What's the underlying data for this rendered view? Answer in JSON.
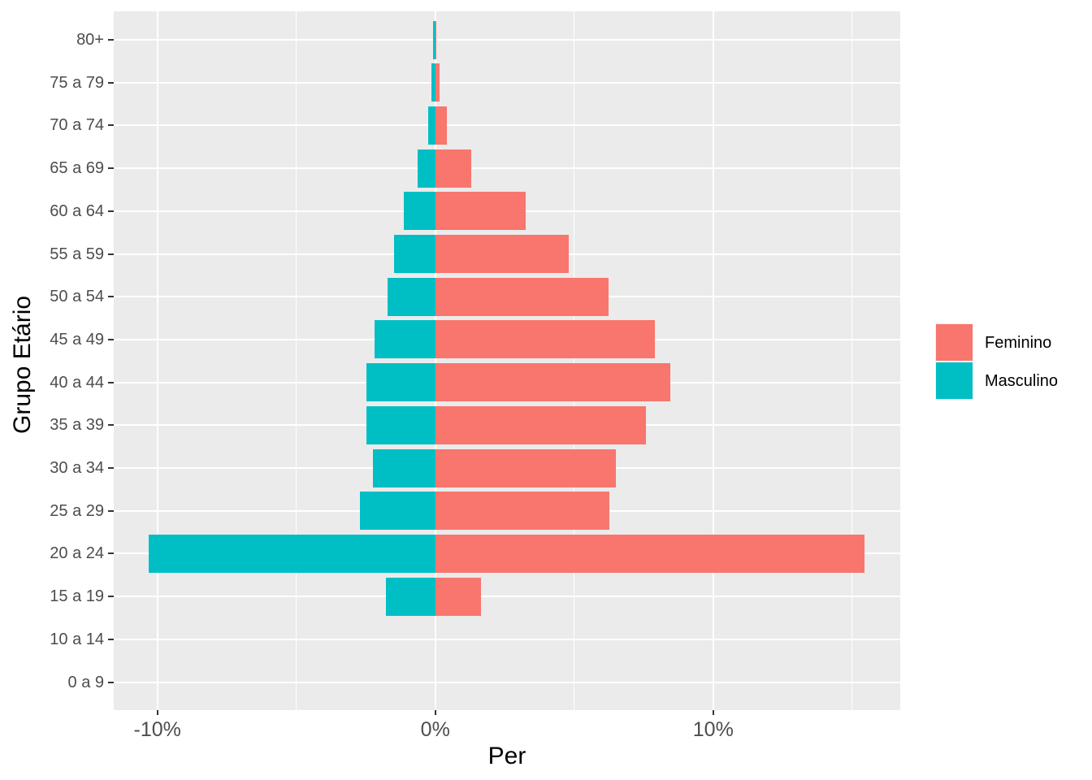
{
  "chart_data": {
    "type": "bar",
    "subtype": "population-pyramid",
    "orientation": "horizontal",
    "title": "",
    "xlabel": "Per",
    "ylabel": "Grupo Etário",
    "categories_top_to_bottom": [
      "80+",
      "75 a 79",
      "70 a 74",
      "65 a 69",
      "60 a 64",
      "55 a 59",
      "50 a 54",
      "45 a 49",
      "40 a 44",
      "35 a 39",
      "30 a 34",
      "25 a 29",
      "20 a 24",
      "15 a 19",
      "10 a 14",
      "0 a 9"
    ],
    "series": [
      {
        "name": "Masculino",
        "side": "left-negative",
        "color": "#00BFC4",
        "values_pct": [
          0.08,
          0.13,
          0.26,
          0.65,
          1.14,
          1.49,
          1.73,
          2.2,
          2.49,
          2.47,
          2.24,
          2.7,
          10.31,
          1.79,
          0,
          0
        ]
      },
      {
        "name": "Feminino",
        "side": "right-positive",
        "color": "#F8766D",
        "values_pct": [
          0.05,
          0.14,
          0.43,
          1.28,
          3.24,
          4.81,
          6.24,
          7.91,
          8.47,
          7.59,
          6.51,
          6.25,
          15.44,
          1.64,
          0,
          0
        ]
      }
    ],
    "x_axis": {
      "tick_labels": [
        "-10%",
        "0%",
        "10%"
      ],
      "tick_values": [
        -10,
        0,
        10
      ],
      "minor_tick_values": [
        -5,
        5,
        15
      ],
      "range": [
        -11.57,
        16.73
      ],
      "unit": "percent of total"
    },
    "legend": {
      "position": "right",
      "entries": [
        {
          "label": "Feminino",
          "color": "#F8766D"
        },
        {
          "label": "Masculino",
          "color": "#00BFC4"
        }
      ]
    },
    "style": {
      "panel_background": "#EBEBEB",
      "grid_color": "#FFFFFF",
      "axis_text_color": "#4D4D4D",
      "title_text_color": "#000000"
    }
  }
}
